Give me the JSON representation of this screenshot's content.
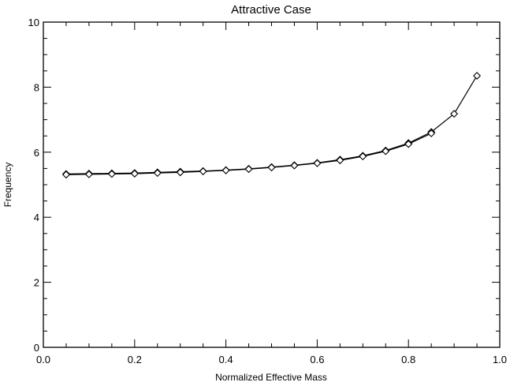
{
  "chart_data": {
    "type": "line",
    "title": "Attractive Case",
    "xlabel": "Normalized Effective Mass",
    "ylabel": "Frequency",
    "xlim": [
      0.0,
      1.0
    ],
    "ylim": [
      0,
      10
    ],
    "x_ticks": [
      "0.0",
      "0.2",
      "0.4",
      "0.6",
      "0.8",
      "1.0"
    ],
    "y_ticks": [
      "0",
      "2",
      "4",
      "6",
      "8",
      "10"
    ],
    "grid": false,
    "marker": "diamond",
    "series": [
      {
        "color": "#000000",
        "x": [
          0.05,
          0.1,
          0.15,
          0.2,
          0.25,
          0.3,
          0.35,
          0.4,
          0.45,
          0.5,
          0.55,
          0.6,
          0.65,
          0.7,
          0.75,
          0.8,
          0.85,
          0.9,
          0.95
        ],
        "y": [
          5.33,
          5.34,
          5.35,
          5.36,
          5.38,
          5.4,
          5.42,
          5.45,
          5.49,
          5.54,
          5.6,
          5.67,
          5.77,
          5.89,
          6.05,
          6.28,
          6.62,
          7.18,
          8.35
        ]
      },
      {
        "color": "#000000",
        "x": [
          0.05,
          0.1,
          0.15,
          0.2,
          0.25,
          0.3,
          0.35,
          0.4,
          0.45,
          0.5,
          0.55,
          0.6,
          0.65,
          0.7,
          0.75,
          0.8,
          0.85
        ],
        "y": [
          5.31,
          5.32,
          5.33,
          5.34,
          5.36,
          5.38,
          5.41,
          5.44,
          5.48,
          5.53,
          5.59,
          5.66,
          5.75,
          5.87,
          6.03,
          6.25,
          6.58
        ]
      }
    ]
  }
}
